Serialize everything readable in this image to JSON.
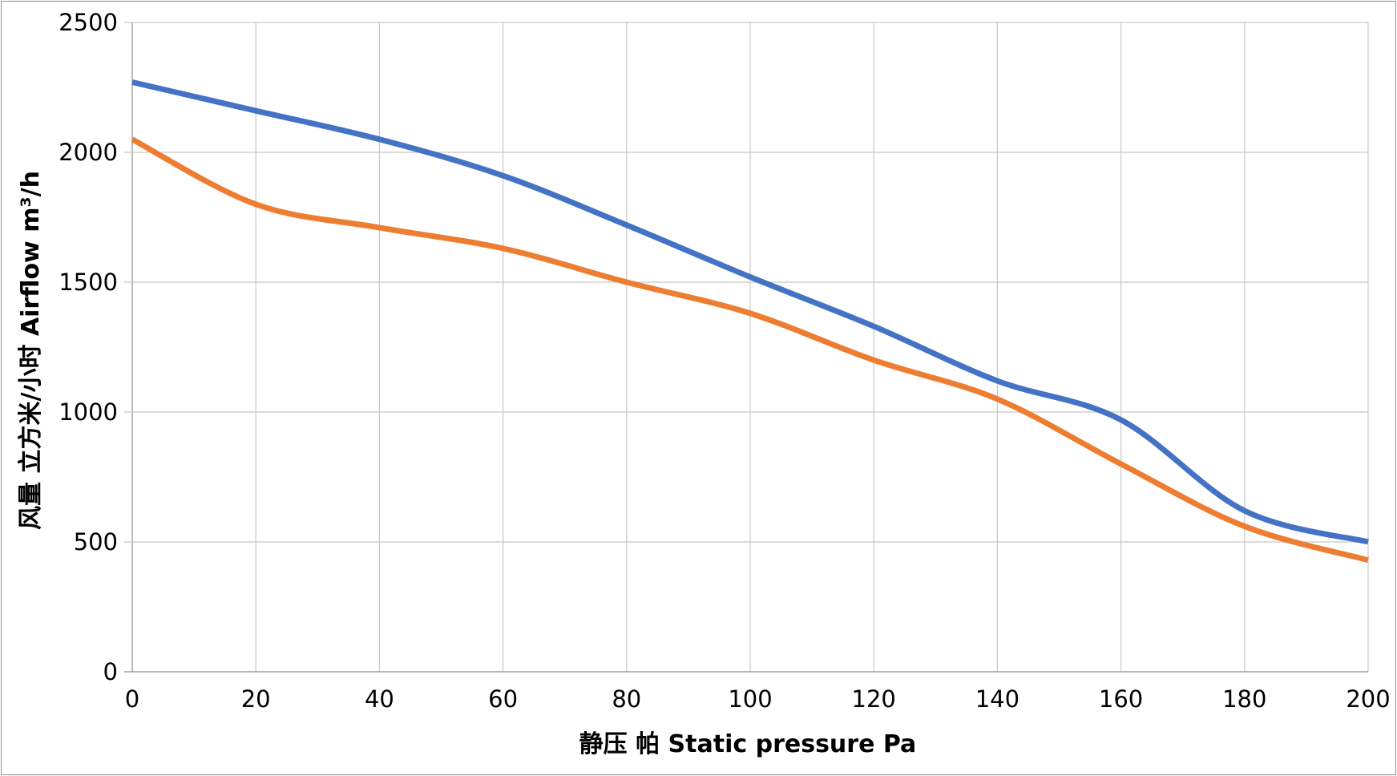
{
  "chart_data": {
    "type": "line",
    "title": "",
    "xlabel": "静压  帕 Static  pressure  Pa",
    "ylabel": "风量  立方米/小时 Airflow  m³/h",
    "xlim": [
      0,
      200
    ],
    "ylim": [
      0,
      2500
    ],
    "x_ticks": [
      0,
      20,
      40,
      60,
      80,
      100,
      120,
      140,
      160,
      180,
      200
    ],
    "y_ticks": [
      0,
      500,
      1000,
      1500,
      2000,
      2500
    ],
    "grid": true,
    "legend": "none",
    "series": [
      {
        "name": "blue curve",
        "color": "#4472C4",
        "x": [
          0,
          20,
          40,
          60,
          80,
          100,
          120,
          140,
          160,
          180,
          200
        ],
        "y": [
          2270,
          2160,
          2050,
          1910,
          1720,
          1520,
          1330,
          1120,
          970,
          620,
          500
        ]
      },
      {
        "name": "orange curve",
        "color": "#ED7D31",
        "x": [
          0,
          20,
          40,
          60,
          80,
          100,
          120,
          140,
          160,
          180,
          200
        ],
        "y": [
          2050,
          1800,
          1710,
          1630,
          1500,
          1380,
          1200,
          1050,
          800,
          560,
          430
        ]
      }
    ],
    "colors": {
      "grid": "#c8c8c8",
      "axis": "#8c8c8c"
    }
  }
}
